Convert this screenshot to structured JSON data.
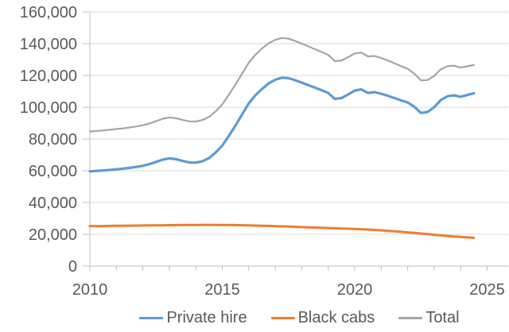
{
  "chart_data": {
    "type": "line",
    "title": "",
    "x": [
      2010,
      2010.25,
      2010.5,
      2010.75,
      2011,
      2011.25,
      2011.5,
      2011.75,
      2012,
      2012.25,
      2012.5,
      2012.75,
      2013,
      2013.25,
      2013.5,
      2013.75,
      2014,
      2014.25,
      2014.5,
      2014.75,
      2015,
      2015.25,
      2015.5,
      2015.75,
      2016,
      2016.25,
      2016.5,
      2016.75,
      2017,
      2017.25,
      2017.5,
      2017.75,
      2018,
      2018.25,
      2018.5,
      2018.75,
      2019,
      2019.25,
      2019.5,
      2019.75,
      2020,
      2020.25,
      2020.5,
      2020.75,
      2021,
      2021.25,
      2021.5,
      2021.75,
      2022,
      2022.25,
      2022.5,
      2022.75,
      2023,
      2023.25,
      2023.5,
      2023.75,
      2024,
      2024.25,
      2024.5
    ],
    "series": [
      {
        "name": "Private hire",
        "color": "#5B9BD5",
        "stroke_width": 3.2,
        "values": [
          59600,
          59900,
          60200,
          60500,
          60900,
          61300,
          61800,
          62400,
          63100,
          64200,
          65600,
          67000,
          67800,
          67300,
          66200,
          65200,
          65100,
          66000,
          68000,
          71500,
          75900,
          82000,
          88500,
          95500,
          102400,
          107500,
          111500,
          115000,
          117300,
          118600,
          118300,
          117000,
          115500,
          113900,
          112300,
          110700,
          109000,
          105200,
          105800,
          108000,
          110500,
          111200,
          109000,
          109500,
          108500,
          107200,
          105800,
          104300,
          103000,
          100300,
          96400,
          97000,
          100000,
          104500,
          106900,
          107500,
          106600,
          107700,
          108800
        ]
      },
      {
        "name": "Black cabs",
        "color": "#ED7D31",
        "stroke_width": 3.0,
        "values": [
          25100,
          25150,
          25200,
          25300,
          25350,
          25400,
          25450,
          25500,
          25550,
          25600,
          25650,
          25700,
          25750,
          25800,
          25850,
          25900,
          25900,
          25950,
          25950,
          25900,
          25900,
          25850,
          25800,
          25700,
          25600,
          25500,
          25400,
          25300,
          25100,
          25000,
          24850,
          24700,
          24550,
          24400,
          24250,
          24100,
          23950,
          23800,
          23650,
          23500,
          23350,
          23200,
          23000,
          22750,
          22500,
          22200,
          21900,
          21550,
          21200,
          20850,
          20500,
          20100,
          19700,
          19300,
          18950,
          18650,
          18350,
          18050,
          17800
        ]
      },
      {
        "name": "Total",
        "color": "#A5A5A5",
        "stroke_width": 2.2,
        "values": [
          84700,
          85050,
          85400,
          85800,
          86250,
          86700,
          87250,
          87900,
          88650,
          89800,
          91250,
          92700,
          93550,
          93100,
          92050,
          91100,
          91000,
          91950,
          93950,
          97400,
          101800,
          107850,
          114300,
          121200,
          128000,
          133000,
          136900,
          140300,
          142400,
          143600,
          143150,
          141700,
          140050,
          138300,
          136550,
          134800,
          132950,
          129000,
          129450,
          131500,
          133850,
          134400,
          132000,
          132250,
          131000,
          129400,
          127700,
          125850,
          124200,
          121150,
          116900,
          117100,
          119700,
          123800,
          125850,
          126150,
          124950,
          125750,
          126600
        ]
      }
    ],
    "axes": {
      "y": {
        "min": 0,
        "max": 160000,
        "tick_interval": 20000,
        "tick_values": [
          0,
          20000,
          40000,
          60000,
          80000,
          100000,
          120000,
          140000,
          160000
        ],
        "tick_labels": [
          "0",
          "20,000",
          "40,000",
          "60,000",
          "80,000",
          "100,000",
          "120,000",
          "140,000",
          "160,000"
        ]
      },
      "x": {
        "first_tick_year": 2010,
        "last_tick_year": 2025,
        "minor_tick_interval_years": 1,
        "labeled_ticks": [
          {
            "year": 2010,
            "label": "2010"
          },
          {
            "year": 2015,
            "label": "2015"
          },
          {
            "year": 2020,
            "label": "2020"
          },
          {
            "year": 2025,
            "label": "2025"
          }
        ]
      }
    },
    "legend_position": "bottom",
    "grid": "horizontal",
    "style": {
      "grid_color": "#D9D9D9",
      "axis_color": "#BFBFBF",
      "text_color": "#595959",
      "background_color": "#FFFFFF"
    }
  }
}
